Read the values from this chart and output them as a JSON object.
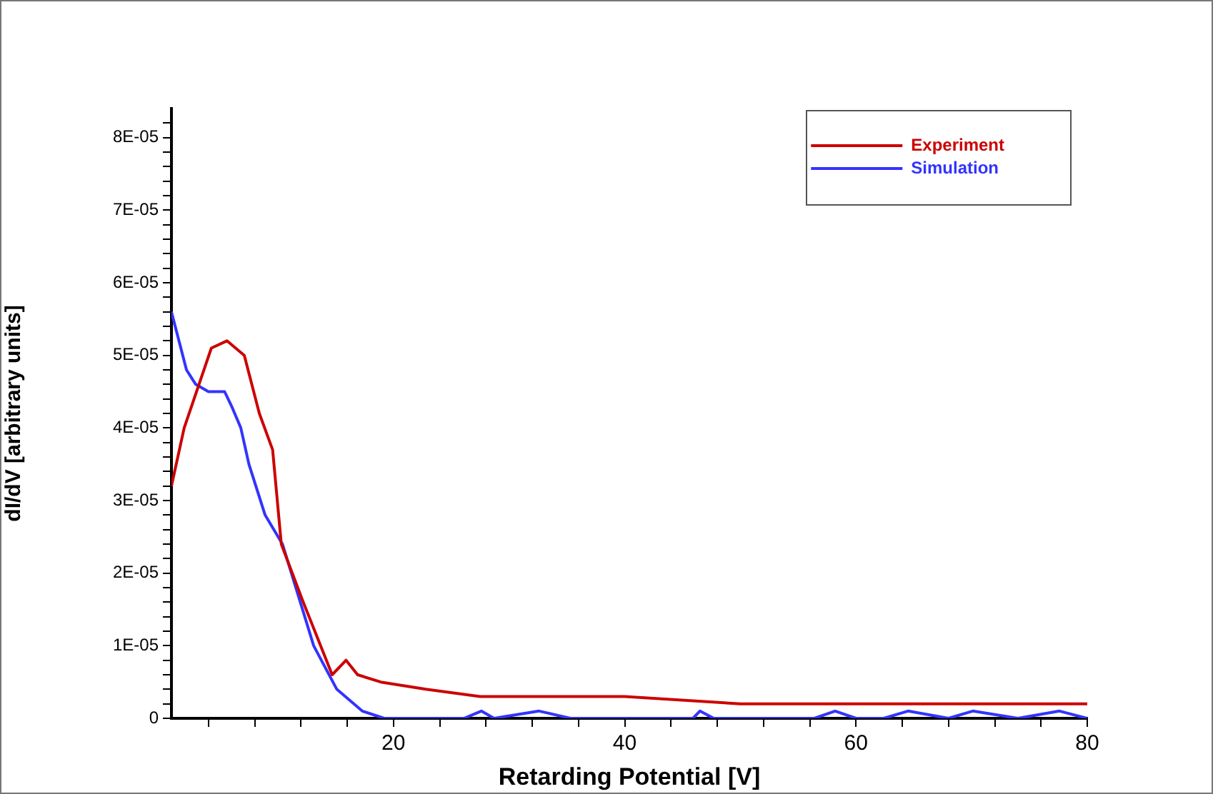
{
  "chart_data": {
    "type": "line",
    "xlabel": "Retarding Potential [V]",
    "ylabel": "dI/dV [arbitrary units]",
    "xlim": [
      0.8,
      80
    ],
    "xticks": [
      {
        "value": 4,
        "label": null
      },
      {
        "value": 8,
        "label": null
      },
      {
        "value": 12,
        "label": null
      },
      {
        "value": 16,
        "label": null
      },
      20,
      {
        "value": 24,
        "label": null
      },
      {
        "value": 28,
        "label": null
      },
      {
        "value": 32,
        "label": null
      },
      {
        "value": 36,
        "label": null
      },
      40,
      {
        "value": 44,
        "label": null
      },
      {
        "value": 48,
        "label": null
      },
      {
        "value": 52,
        "label": null
      },
      {
        "value": 56,
        "label": null
      },
      60,
      {
        "value": 64,
        "label": null
      },
      {
        "value": 68,
        "label": null
      },
      {
        "value": 72,
        "label": null
      },
      {
        "value": 76,
        "label": null
      },
      80
    ],
    "ylim": [
      0,
      8.4e-05
    ],
    "yticks": [
      0,
      {
        "value": 2e-06,
        "label": null
      },
      {
        "value": 4e-06,
        "label": null
      },
      {
        "value": 6e-06,
        "label": null
      },
      {
        "value": 8e-06,
        "label": null
      },
      {
        "value": 1e-05,
        "label": "1E-05"
      },
      {
        "value": 1.2e-05,
        "label": null
      },
      {
        "value": 1.4e-05,
        "label": null
      },
      {
        "value": 1.6e-05,
        "label": null
      },
      {
        "value": 1.8e-05,
        "label": null
      },
      {
        "value": 2e-05,
        "label": "2E-05"
      },
      {
        "value": 2.2e-05,
        "label": null
      },
      {
        "value": 2.4e-05,
        "label": null
      },
      {
        "value": 2.6e-05,
        "label": null
      },
      {
        "value": 2.8e-05,
        "label": null
      },
      {
        "value": 3e-05,
        "label": "3E-05"
      },
      {
        "value": 3.2e-05,
        "label": null
      },
      {
        "value": 3.4e-05,
        "label": null
      },
      {
        "value": 3.6e-05,
        "label": null
      },
      {
        "value": 3.8e-05,
        "label": null
      },
      {
        "value": 4e-05,
        "label": "4E-05"
      },
      {
        "value": 4.2e-05,
        "label": null
      },
      {
        "value": 4.4e-05,
        "label": null
      },
      {
        "value": 4.6e-05,
        "label": null
      },
      {
        "value": 4.8e-05,
        "label": null
      },
      {
        "value": 5e-05,
        "label": "5E-05"
      },
      {
        "value": 5.2e-05,
        "label": null
      },
      {
        "value": 5.4e-05,
        "label": null
      },
      {
        "value": 5.6e-05,
        "label": null
      },
      {
        "value": 5.8e-05,
        "label": null
      },
      {
        "value": 6e-05,
        "label": "6E-05"
      },
      {
        "value": 6.2e-05,
        "label": null
      },
      {
        "value": 6.4e-05,
        "label": null
      },
      {
        "value": 6.6e-05,
        "label": null
      },
      {
        "value": 6.8e-05,
        "label": null
      },
      {
        "value": 7e-05,
        "label": "7E-05"
      },
      {
        "value": 7.2e-05,
        "label": null
      },
      {
        "value": 7.4e-05,
        "label": null
      },
      {
        "value": 7.6e-05,
        "label": null
      },
      {
        "value": 7.8e-05,
        "label": null
      },
      {
        "value": 8e-05,
        "label": "8E-05"
      },
      {
        "value": 8.2e-05,
        "label": null
      }
    ],
    "grid": false,
    "legend": "top right",
    "marker": "none",
    "line_style": "solid",
    "series": [
      {
        "name": "Experiment",
        "color": "#cc0000",
        "x": [
          0.8,
          1.9,
          4.25,
          5.6,
          7.1,
          8.4,
          9.55,
          10.3,
          12.2,
          14.7,
          15.9,
          16.9,
          18.9,
          22.8,
          27.5,
          40,
          50,
          60,
          62,
          80
        ],
        "values": [
          3.2e-05,
          4e-05,
          5.1e-05,
          5.2e-05,
          5e-05,
          4.2e-05,
          3.7e-05,
          2.4e-05,
          1.6e-05,
          6e-06,
          8e-06,
          6e-06,
          5e-06,
          4e-06,
          3e-06,
          3e-06,
          2e-06,
          2e-06,
          2e-06,
          2e-06
        ]
      },
      {
        "name": "Simulation",
        "color": "#3333ff",
        "x": [
          0.8,
          2.1,
          2.9,
          4.0,
          5.4,
          6.0,
          6.8,
          7.5,
          8.9,
          10.4,
          13.1,
          15.1,
          17.3,
          19.2,
          26.1,
          27.6,
          28.7,
          32.6,
          35.3,
          45.9,
          46.5,
          47.7,
          56.4,
          58.2,
          60,
          62.4,
          64.5,
          68,
          70.1,
          74,
          77.6,
          80
        ],
        "values": [
          5.6e-05,
          4.8e-05,
          4.6e-05,
          4.5e-05,
          4.5e-05,
          4.3e-05,
          4e-05,
          3.5e-05,
          2.8e-05,
          2.4e-05,
          1e-05,
          4e-06,
          1e-06,
          0,
          0,
          1e-06,
          0,
          1e-06,
          0,
          0,
          1e-06,
          0,
          0,
          1e-06,
          0,
          0,
          1e-06,
          0,
          1e-06,
          0,
          1e-06,
          0
        ]
      }
    ]
  }
}
